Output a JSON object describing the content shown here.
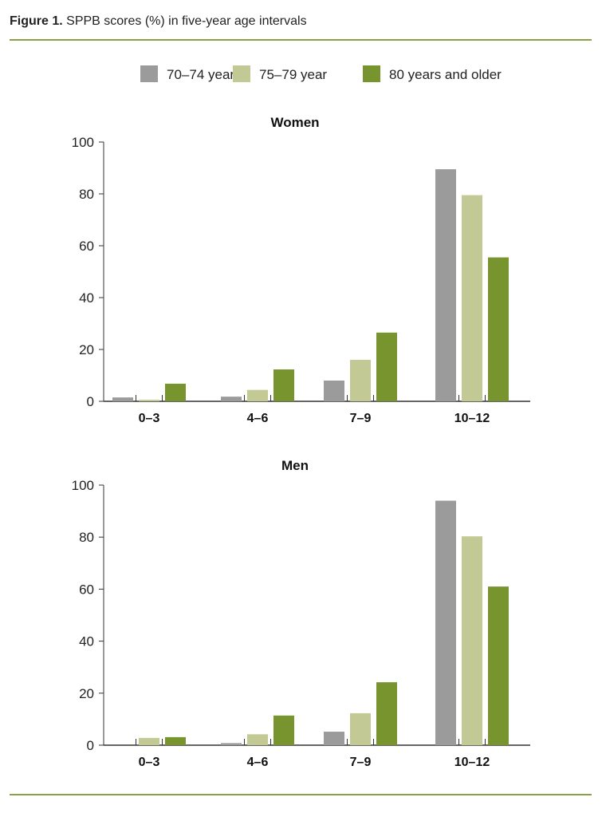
{
  "figure": {
    "label": "Figure 1.",
    "caption": "SPPB scores (%) in five-year age intervals"
  },
  "colors": {
    "rule": "#8ca04a",
    "series": [
      "#9b9b9b",
      "#c2c994",
      "#77942e"
    ]
  },
  "chart_data": [
    {
      "type": "bar",
      "title": "Women",
      "categories": [
        "0–3",
        "4–6",
        "7–9",
        "10–12"
      ],
      "ylim": [
        0,
        100
      ],
      "yticks": [
        0,
        20,
        40,
        60,
        80,
        100
      ],
      "legend": "top",
      "grid": false,
      "series": [
        {
          "name": "70–74 year",
          "values": [
            1.5,
            1.8,
            8,
            89.5
          ]
        },
        {
          "name": "75–79 year",
          "values": [
            0.6,
            4.4,
            16,
            79.5
          ]
        },
        {
          "name": "80 years and older",
          "values": [
            6.8,
            12.3,
            26.5,
            55.5
          ]
        }
      ]
    },
    {
      "type": "bar",
      "title": "Men",
      "categories": [
        "0–3",
        "4–6",
        "7–9",
        "10–12"
      ],
      "ylim": [
        0,
        100
      ],
      "yticks": [
        0,
        20,
        40,
        60,
        80,
        100
      ],
      "legend": "top",
      "grid": false,
      "series": [
        {
          "name": "70–74 year",
          "values": [
            0,
            0.8,
            5.2,
            94
          ]
        },
        {
          "name": "75–79 year",
          "values": [
            2.8,
            4.2,
            12.3,
            80.3
          ]
        },
        {
          "name": "80 years and older",
          "values": [
            3.1,
            11.4,
            24.2,
            61
          ]
        }
      ]
    }
  ]
}
